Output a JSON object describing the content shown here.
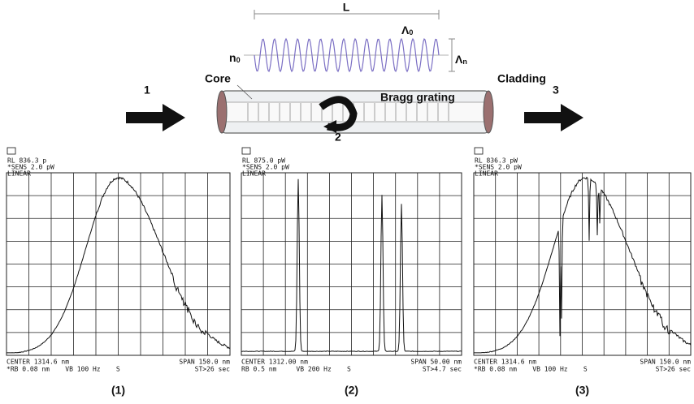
{
  "diagram": {
    "length_label": "L",
    "period_label": {
      "symbol": "Λ",
      "sub": "0"
    },
    "index_mod_label": {
      "symbol": "Λ",
      "sub": "n"
    },
    "index_label": {
      "symbol": "n",
      "sub": "0"
    },
    "core_label": "Core",
    "cladding_label": "Cladding",
    "grating_label": "Bragg grating",
    "arrow_labels": [
      "1",
      "2",
      "3"
    ]
  },
  "panels": [
    {
      "header": [
        "RL 836.3 p",
        "*SENS  2.0 pW",
        "LINEAR"
      ],
      "footer_left": [
        "CENTER 1314.6 nm",
        "*RB 0.08 nm    VB 100 Hz    S"
      ],
      "footer_right": [
        "SPAN 150.0 nm",
        "ST>26 sec"
      ],
      "caption": "(1)"
    },
    {
      "header": [
        "RL 875.0 pW",
        "*SENS  2.0 pW",
        "LINEAR"
      ],
      "footer_left": [
        "CENTER 1312.00 nm",
        "RB 0.5 nm     VB 200 Hz    S"
      ],
      "footer_right": [
        "SPAN 50.00 nm",
        "ST>4.7 sec"
      ],
      "caption": "(2)"
    },
    {
      "header": [
        "RL 836.3 pW",
        "*SENS  2.0 pW",
        "LINEAR"
      ],
      "footer_left": [
        "CENTER 1314.6 nm",
        "*RB 0.08 nm    VB 100 Hz    S"
      ],
      "footer_right": [
        "SPAN 150.0 nm",
        "ST>26 sec"
      ],
      "caption": "(3)"
    }
  ]
}
